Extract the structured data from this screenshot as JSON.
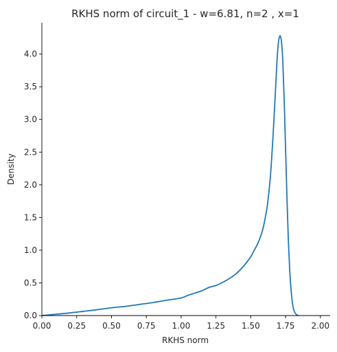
{
  "chart_data": {
    "type": "line",
    "title": "RKHS norm of circuit_1 - w=6.81, n=2 , x=1",
    "xlabel": "RKHS norm",
    "ylabel": "Density",
    "xlim": [
      0.0,
      2.07
    ],
    "ylim": [
      0.0,
      4.48
    ],
    "xticks": [
      0.0,
      0.25,
      0.5,
      0.75,
      1.0,
      1.25,
      1.5,
      1.75,
      2.0
    ],
    "xtick_labels": [
      "0.00",
      "0.25",
      "0.50",
      "0.75",
      "1.00",
      "1.25",
      "1.50",
      "1.75",
      "2.00"
    ],
    "yticks": [
      0.0,
      0.5,
      1.0,
      1.5,
      2.0,
      2.5,
      3.0,
      3.5,
      4.0
    ],
    "ytick_labels": [
      "0.0",
      "0.5",
      "1.0",
      "1.5",
      "2.0",
      "2.5",
      "3.0",
      "3.5",
      "4.0"
    ],
    "grid": false,
    "line_color": "#1f77b4",
    "series": [
      {
        "x": [
          0.0,
          0.1,
          0.2,
          0.3,
          0.4,
          0.5,
          0.55,
          0.6,
          0.7,
          0.8,
          0.9,
          1.0,
          1.05,
          1.1,
          1.15,
          1.2,
          1.25,
          1.3,
          1.35,
          1.4,
          1.45,
          1.5,
          1.52,
          1.55,
          1.58,
          1.6,
          1.62,
          1.64,
          1.66,
          1.68,
          1.69,
          1.7,
          1.71,
          1.72,
          1.73,
          1.74,
          1.75,
          1.76,
          1.77,
          1.78,
          1.79,
          1.8,
          1.81,
          1.82,
          1.83,
          1.84
        ],
        "y": [
          0.0,
          0.02,
          0.04,
          0.065,
          0.09,
          0.12,
          0.13,
          0.14,
          0.17,
          0.2,
          0.235,
          0.27,
          0.31,
          0.345,
          0.38,
          0.43,
          0.46,
          0.51,
          0.57,
          0.65,
          0.76,
          0.9,
          0.98,
          1.1,
          1.27,
          1.45,
          1.7,
          2.1,
          2.75,
          3.55,
          3.95,
          4.2,
          4.28,
          4.2,
          3.9,
          3.3,
          2.55,
          1.8,
          1.15,
          0.68,
          0.38,
          0.18,
          0.08,
          0.035,
          0.01,
          0.0
        ]
      }
    ]
  }
}
